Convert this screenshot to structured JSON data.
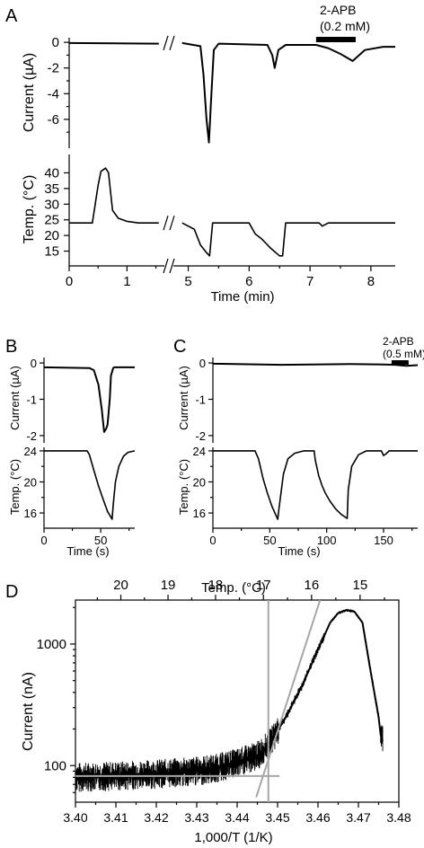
{
  "panel_labels": [
    "A",
    "B",
    "C",
    "D"
  ],
  "colors": {
    "trace": "#000000",
    "fit_lines": "#a6a6a6",
    "background": "#ffffff"
  },
  "chart_data": [
    {
      "id": "A-current",
      "type": "line",
      "ylabel": "Current (µA)",
      "yticks": [
        "0",
        "-2",
        "-4",
        "-6"
      ],
      "ylim": [
        -7.9,
        0.5
      ],
      "xlim": [
        0,
        8.4
      ],
      "x_axis_break": [
        1.6,
        4.8
      ],
      "annotation": {
        "line1": "2-APB",
        "line2": "(0.2 mM)",
        "x_range": [
          7.1,
          7.75
        ]
      },
      "series": [
        {
          "x": [
            0.0,
            1.55,
            4.9,
            5.2,
            5.25,
            5.3,
            5.34,
            5.37,
            5.42,
            5.5,
            6.3,
            6.38,
            6.42,
            6.48,
            6.6,
            7.1,
            7.3,
            7.5,
            7.7,
            7.9,
            8.2,
            8.4
          ],
          "y": [
            -0.05,
            -0.1,
            -0.05,
            -0.3,
            -2.5,
            -6.0,
            -7.8,
            -5.0,
            -0.6,
            -0.1,
            -0.2,
            -1.0,
            -2.0,
            -0.6,
            -0.2,
            -0.2,
            -0.45,
            -0.9,
            -1.45,
            -0.6,
            -0.35,
            -0.35
          ]
        }
      ]
    },
    {
      "id": "A-temp",
      "type": "line",
      "ylabel": "Temp. (°C)",
      "xlabel": "Time (min)",
      "yticks": [
        "40",
        "35",
        "30",
        "25",
        "20",
        "15"
      ],
      "xticks": [
        "0",
        "1",
        "5",
        "6",
        "7",
        "8"
      ],
      "ylim": [
        12,
        45
      ],
      "xlim": [
        0,
        8.4
      ],
      "x_axis_break": [
        1.6,
        4.8
      ],
      "series": [
        {
          "x": [
            0.0,
            0.4,
            0.5,
            0.55,
            0.63,
            0.68,
            0.75,
            0.85,
            1.0,
            1.2,
            1.55,
            4.9,
            5.1,
            5.2,
            5.3,
            5.35,
            5.4,
            5.5,
            6.0,
            6.1,
            6.2,
            6.35,
            6.5,
            6.55,
            6.6,
            7.0,
            7.15,
            7.2,
            7.3,
            8.4
          ],
          "y": [
            24,
            24,
            36,
            40.5,
            41.5,
            40,
            28,
            25.5,
            24.5,
            24,
            24,
            24,
            22,
            17,
            14.5,
            13.5,
            24,
            24,
            24,
            20.5,
            19,
            16,
            13.5,
            13.5,
            24,
            24,
            24,
            23,
            24,
            24
          ]
        }
      ]
    },
    {
      "id": "B-current",
      "type": "line",
      "ylabel": "Current (µA)",
      "yticks": [
        "0",
        "-1",
        "-2"
      ],
      "ylim": [
        -2.2,
        0.15
      ],
      "xlim": [
        0,
        80
      ],
      "series": [
        {
          "x": [
            0,
            40,
            44,
            48,
            51,
            53,
            55,
            56,
            58,
            59,
            61,
            62,
            80
          ],
          "y": [
            -0.12,
            -0.14,
            -0.2,
            -0.6,
            -1.3,
            -1.9,
            -1.8,
            -1.7,
            -1.0,
            -0.35,
            -0.14,
            -0.12,
            -0.12
          ]
        }
      ]
    },
    {
      "id": "B-temp",
      "type": "line",
      "ylabel": "Temp. (°C)",
      "xlabel": "Time (s)",
      "yticks": [
        "24",
        "20",
        "16"
      ],
      "xticks": [
        "0",
        "50"
      ],
      "ylim": [
        14.5,
        24.8
      ],
      "xlim": [
        0,
        80
      ],
      "series": [
        {
          "x": [
            0,
            38,
            40,
            44,
            48,
            52,
            56,
            60,
            61,
            63,
            66,
            70,
            74,
            80
          ],
          "y": [
            24,
            24,
            23.5,
            21.5,
            19.5,
            17.8,
            16.2,
            15.2,
            17,
            20,
            22,
            23.3,
            23.8,
            24
          ]
        }
      ]
    },
    {
      "id": "C-current",
      "type": "line",
      "ylabel": "Current (µA)",
      "yticks": [
        "0",
        "-1",
        "-2"
      ],
      "ylim": [
        -2.2,
        0.15
      ],
      "xlim": [
        0,
        180
      ],
      "annotation": {
        "line1": "2-APB",
        "line2": "(0.5 mM)",
        "x_range": [
          157,
          172
        ]
      },
      "series": [
        {
          "x": [
            0,
            60,
            120,
            150,
            160,
            170,
            180
          ],
          "y": [
            -0.02,
            -0.05,
            -0.03,
            -0.04,
            -0.05,
            -0.08,
            -0.06
          ]
        }
      ]
    },
    {
      "id": "C-temp",
      "type": "line",
      "ylabel": "Temp. (°C)",
      "xlabel": "Time (s)",
      "yticks": [
        "24",
        "20",
        "16"
      ],
      "xticks": [
        "0",
        "50",
        "100",
        "150"
      ],
      "ylim": [
        14.5,
        24.8
      ],
      "xlim": [
        0,
        180
      ],
      "series": [
        {
          "x": [
            0,
            37,
            40,
            44,
            48,
            52,
            57,
            58,
            62,
            66,
            72,
            80,
            89,
            90,
            93,
            96,
            99,
            103,
            108,
            113,
            118,
            119,
            122,
            128,
            135,
            148,
            150,
            152,
            155,
            170,
            180
          ],
          "y": [
            24,
            24,
            23,
            20.5,
            18.5,
            16.8,
            15.2,
            16.5,
            21,
            23,
            23.7,
            24,
            24,
            22.8,
            20.8,
            19.5,
            18.5,
            17.5,
            16.5,
            15.8,
            15.3,
            19,
            22,
            23.5,
            24,
            24,
            23.4,
            23.6,
            24,
            24,
            24
          ]
        }
      ]
    },
    {
      "id": "D",
      "type": "line",
      "scale": "log",
      "ylabel": "Current (nA)",
      "xlabel": "1,000/T (1/K)",
      "top_axis_label": "Temp. (°C)",
      "xticks": [
        "3.40",
        "3.41",
        "3.42",
        "3.43",
        "3.44",
        "3.45",
        "3.46",
        "3.47",
        "3.48"
      ],
      "top_ticks": [
        "20",
        "19",
        "18",
        "17",
        "16",
        "15"
      ],
      "top_tick_celsius": [
        20,
        19,
        18,
        17,
        16,
        15
      ],
      "yticks": [
        "1000",
        "100"
      ],
      "xlim": [
        3.4,
        3.48
      ],
      "ylim": [
        50,
        2300
      ],
      "series": [
        {
          "x": [
            3.4,
            3.41,
            3.42,
            3.43,
            3.435,
            3.44,
            3.445,
            3.448,
            3.452,
            3.456,
            3.46,
            3.463,
            3.465,
            3.467,
            3.469,
            3.471,
            3.473,
            3.475,
            3.4755,
            3.476
          ],
          "y": [
            80,
            82,
            85,
            90,
            95,
            105,
            120,
            150,
            250,
            450,
            900,
            1500,
            1800,
            1900,
            1850,
            1500,
            600,
            250,
            180,
            160
          ]
        }
      ],
      "fit_lines": [
        {
          "x": [
            3.4447,
            3.4605
          ],
          "y": [
            55,
            2300
          ]
        },
        {
          "x": [
            3.4,
            3.4505
          ],
          "y": [
            82,
            82
          ]
        },
        {
          "x": [
            3.4477,
            3.4477
          ],
          "y": [
            50,
            2300
          ]
        }
      ]
    }
  ]
}
